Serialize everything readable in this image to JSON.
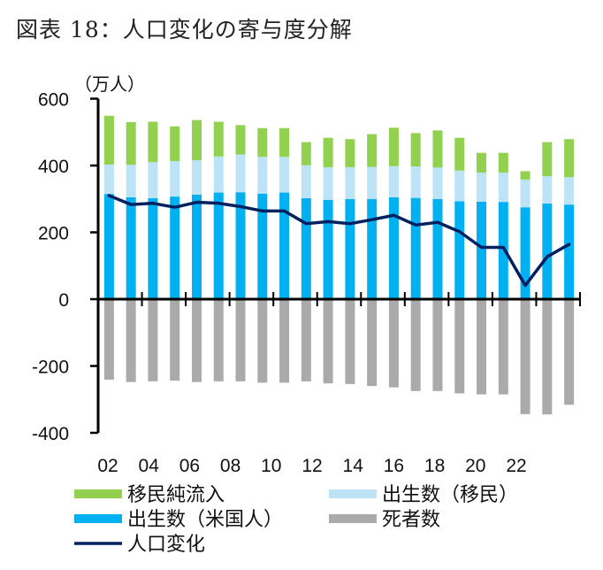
{
  "title": "図表 18：人口変化の寄与度分解",
  "chart_data": {
    "type": "bar",
    "stacked": true,
    "title": "図表 18：人口変化の寄与度分解",
    "ylabel": "（万人）",
    "xlabel": "",
    "ylim": [
      -400,
      600
    ],
    "yticks": [
      600,
      400,
      200,
      0,
      -200,
      -400
    ],
    "ytick_labels": [
      "600",
      "400",
      "200",
      "0",
      "-200",
      "-400"
    ],
    "categories": [
      "2002",
      "2003",
      "2004",
      "2005",
      "2006",
      "2007",
      "2008",
      "2009",
      "2010",
      "2011",
      "2012",
      "2013",
      "2014",
      "2015",
      "2016",
      "2017",
      "2018",
      "2019",
      "2020",
      "2021",
      "2022",
      "2023"
    ],
    "xtick_labels": [
      "02",
      "04",
      "06",
      "08",
      "10",
      "12",
      "14",
      "16",
      "18",
      "20",
      "22"
    ],
    "grid": false,
    "legend_placement": "bottom",
    "series": [
      {
        "name": "出生数（米国人）",
        "kind": "bar",
        "color": "#00B0F0",
        "values": [
          315,
          305,
          302,
          307,
          313,
          319,
          320,
          316,
          319,
          302,
          297,
          300,
          300,
          305,
          303,
          300,
          293,
          292,
          291,
          275,
          286,
          283
        ]
      },
      {
        "name": "出生数（移民）",
        "kind": "bar",
        "color": "#BDE3F7",
        "values": [
          88,
          97,
          108,
          106,
          103,
          108,
          113,
          110,
          107,
          99,
          98,
          95,
          96,
          93,
          94,
          94,
          92,
          87,
          88,
          83,
          82,
          82
        ]
      },
      {
        "name": "移民純流入",
        "kind": "bar",
        "color": "#92D050",
        "values": [
          146,
          128,
          121,
          104,
          120,
          104,
          88,
          86,
          86,
          69,
          88,
          84,
          98,
          115,
          100,
          111,
          98,
          59,
          59,
          25,
          102,
          114
        ]
      },
      {
        "name": "死者数",
        "kind": "bar",
        "color": "#AAAAAA",
        "values": [
          -241,
          -248,
          -246,
          -244,
          -248,
          -246,
          -246,
          -250,
          -250,
          -246,
          -252,
          -254,
          -260,
          -264,
          -275,
          -275,
          -282,
          -285,
          -285,
          -344,
          -345,
          -316
        ]
      },
      {
        "name": "人口変化",
        "kind": "line",
        "color": "#002060",
        "values": [
          310,
          283,
          287,
          275,
          290,
          287,
          277,
          264,
          264,
          226,
          232,
          226,
          238,
          251,
          222,
          230,
          202,
          155,
          155,
          41,
          127,
          164
        ]
      }
    ]
  },
  "legend": {
    "items": [
      {
        "label": "移民純流入",
        "color": "#92D050",
        "kind": "bar"
      },
      {
        "label": "出生数（移民）",
        "color": "#BDE3F7",
        "kind": "bar"
      },
      {
        "label": "出生数（米国人）",
        "color": "#00B0F0",
        "kind": "bar"
      },
      {
        "label": "死者数",
        "color": "#AAAAAA",
        "kind": "bar"
      },
      {
        "label": "人口変化",
        "color": "#002060",
        "kind": "line"
      }
    ]
  }
}
